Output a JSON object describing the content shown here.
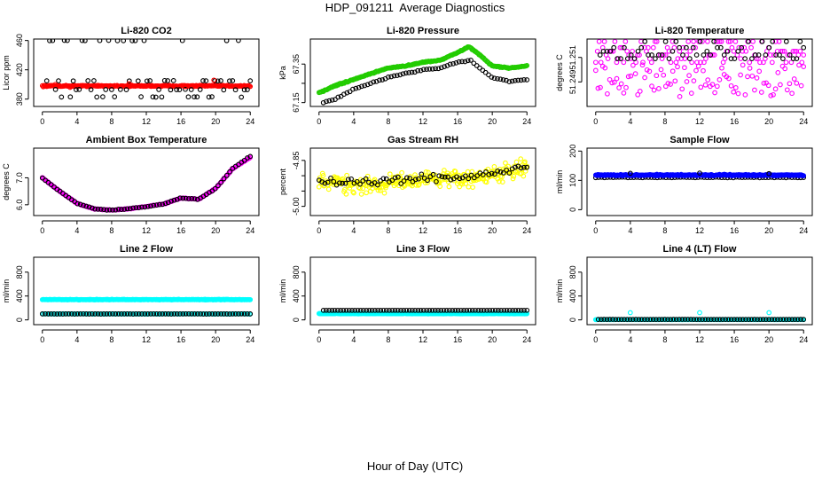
{
  "figure": {
    "title": "HDP_091211  Average Diagnostics",
    "xlabel": "Hour of Day (UTC)"
  },
  "colors": {
    "black": "#000000",
    "red": "#ff0000",
    "green": "#22cc00",
    "magenta": "#ff00ff",
    "yellow": "#ffff00",
    "blue": "#0000ff",
    "cyan": "#00ffff"
  },
  "chart_data": [
    {
      "id": "co2",
      "type": "scatter",
      "title": "Li-820 CO2",
      "ylabel": "Licor ppm",
      "ylim": [
        370,
        462
      ],
      "yticks": [
        380,
        420,
        460
      ],
      "yticklabels": [
        "380",
        "420",
        "460"
      ],
      "xlim": [
        -1,
        25
      ],
      "xticks": [
        0,
        4,
        8,
        12,
        16,
        20,
        24
      ],
      "series": [
        {
          "name": "instantaneous",
          "color": "red",
          "x_range": [
            0,
            24
          ],
          "n": 240,
          "y": [
            398,
            398
          ],
          "noise": 1.2
        },
        {
          "name": "black",
          "color": "black",
          "x_range": [
            0.5,
            24
          ],
          "n": 70,
          "levels": [
            383,
            393,
            405,
            460
          ],
          "noise": 0.6
        },
        {
          "name": "red-outliers",
          "color": "red",
          "x": [
            1.5,
            3.2,
            10,
            16.5,
            19.8
          ],
          "y": [
            400,
            396,
            401,
            397,
            406
          ]
        }
      ]
    },
    {
      "id": "pressure",
      "type": "scatter",
      "title": "Li-820 Pressure",
      "ylabel": "kPa",
      "ylim": [
        67.13,
        67.48
      ],
      "yticks": [
        67.15,
        67.25,
        67.35
      ],
      "yticklabels": [
        "67.15",
        "",
        "67.35"
      ],
      "xlim": [
        -1,
        25
      ],
      "xticks": [
        0,
        4,
        8,
        12,
        16,
        20,
        24
      ],
      "series": [
        {
          "name": "green",
          "color": "green",
          "n": 240,
          "noise": 0.004,
          "points": [
            [
              0,
              67.2
            ],
            [
              2,
              67.24
            ],
            [
              4,
              67.27
            ],
            [
              6,
              67.3
            ],
            [
              8,
              67.33
            ],
            [
              10,
              67.34
            ],
            [
              12,
              67.36
            ],
            [
              14,
              67.37
            ],
            [
              16,
              67.41
            ],
            [
              17.3,
              67.44
            ],
            [
              18.5,
              67.4
            ],
            [
              20,
              67.34
            ],
            [
              22,
              67.33
            ],
            [
              24,
              67.34
            ]
          ]
        },
        {
          "name": "black",
          "color": "black",
          "n": 70,
          "noise": 0.004,
          "points": [
            [
              0.5,
              67.15
            ],
            [
              2,
              67.17
            ],
            [
              4,
              67.22
            ],
            [
              6,
              67.25
            ],
            [
              8,
              67.28
            ],
            [
              10,
              67.3
            ],
            [
              12,
              67.32
            ],
            [
              14,
              67.33
            ],
            [
              16,
              67.36
            ],
            [
              17.5,
              67.37
            ],
            [
              18.5,
              67.33
            ],
            [
              20,
              67.28
            ],
            [
              22,
              67.26
            ],
            [
              24,
              67.27
            ]
          ]
        }
      ]
    },
    {
      "id": "temperature",
      "type": "scatter",
      "title": "Li-820 Temperature",
      "ylabel": "degrees C",
      "ylim": [
        51.247,
        51.2525
      ],
      "yticks": [
        51.249,
        51.251
      ],
      "yticklabels": [
        "51.249",
        "51.251"
      ],
      "xlim": [
        -1,
        25
      ],
      "xticks": [
        0,
        4,
        8,
        12,
        16,
        20,
        24
      ],
      "series": [
        {
          "name": "magenta-levels",
          "color": "magenta",
          "x_range": [
            0,
            24
          ],
          "n": 120,
          "levels": [
            51.2518,
            51.2515,
            51.2512,
            51.2509,
            51.2506,
            51.2523
          ]
        },
        {
          "name": "magenta-scatter",
          "color": "magenta",
          "x_range": [
            0,
            24
          ],
          "n": 90,
          "y_range": [
            51.2478,
            51.2504
          ]
        },
        {
          "name": "black",
          "color": "black",
          "x_range": [
            0.5,
            24
          ],
          "n": 60,
          "levels": [
            51.2518,
            51.2515,
            51.2512,
            51.2509,
            51.2523
          ]
        }
      ]
    },
    {
      "id": "ambient",
      "type": "scatter",
      "title": "Ambient Box Temperature",
      "ylabel": "degrees C",
      "ylim": [
        5.6,
        8.1
      ],
      "yticks": [
        6.0,
        7.0
      ],
      "yticklabels": [
        "6.0",
        "7.0"
      ],
      "xlim": [
        -1,
        25
      ],
      "xticks": [
        0,
        4,
        8,
        12,
        16,
        20,
        24
      ],
      "series": [
        {
          "name": "magenta",
          "color": "magenta",
          "n": 240,
          "noise": 0.02,
          "points": [
            [
              0,
              7.0
            ],
            [
              2,
              6.5
            ],
            [
              4,
              6.05
            ],
            [
              6,
              5.85
            ],
            [
              8,
              5.8
            ],
            [
              10,
              5.85
            ],
            [
              12,
              5.93
            ],
            [
              14,
              6.03
            ],
            [
              16,
              6.25
            ],
            [
              18,
              6.2
            ],
            [
              20,
              6.6
            ],
            [
              22,
              7.35
            ],
            [
              24,
              7.75
            ]
          ]
        },
        {
          "name": "black",
          "color": "black",
          "n": 72,
          "noise": 0.02,
          "points": [
            [
              0,
              7.0
            ],
            [
              2,
              6.5
            ],
            [
              4,
              6.05
            ],
            [
              6,
              5.85
            ],
            [
              8,
              5.8
            ],
            [
              10,
              5.85
            ],
            [
              12,
              5.93
            ],
            [
              14,
              6.03
            ],
            [
              16,
              6.25
            ],
            [
              18,
              6.2
            ],
            [
              20,
              6.6
            ],
            [
              22,
              7.35
            ],
            [
              24,
              7.8
            ]
          ]
        }
      ]
    },
    {
      "id": "rh",
      "type": "scatter",
      "title": "Gas Stream RH",
      "ylabel": "percent",
      "ylim": [
        -5.03,
        -4.81
      ],
      "yticks": [
        -5.0,
        -4.95,
        -4.9,
        -4.85
      ],
      "yticklabels": [
        "-5.00",
        "",
        "",
        "-4.85"
      ],
      "xlim": [
        -1,
        25
      ],
      "xticks": [
        0,
        4,
        8,
        12,
        16,
        20,
        24
      ],
      "series": [
        {
          "name": "yellow",
          "color": "yellow",
          "n": 300,
          "noise": 0.04,
          "points": [
            [
              0,
              -4.92
            ],
            [
              6,
              -4.93
            ],
            [
              12,
              -4.91
            ],
            [
              18,
              -4.91
            ],
            [
              24,
              -4.87
            ]
          ]
        },
        {
          "name": "black",
          "color": "black",
          "n": 72,
          "noise": 0.018,
          "points": [
            [
              0,
              -4.92
            ],
            [
              6,
              -4.92
            ],
            [
              12,
              -4.91
            ],
            [
              18,
              -4.9
            ],
            [
              24,
              -4.87
            ]
          ]
        }
      ]
    },
    {
      "id": "sample",
      "type": "scatter",
      "title": "Sample Flow",
      "ylabel": "ml/min",
      "ylim": [
        -20,
        210
      ],
      "yticks": [
        0,
        100,
        200
      ],
      "yticklabels": [
        "0",
        "100",
        "200"
      ],
      "xlim": [
        -1,
        25
      ],
      "xticks": [
        0,
        4,
        8,
        12,
        16,
        20,
        24
      ],
      "series": [
        {
          "name": "black",
          "color": "black",
          "x_range": [
            0,
            24
          ],
          "n": 72,
          "y": [
            110,
            110
          ],
          "noise": 2
        },
        {
          "name": "blue",
          "color": "blue",
          "x_range": [
            0,
            24
          ],
          "n": 300,
          "y": [
            118,
            118
          ],
          "noise": 3
        },
        {
          "name": "black-outliers",
          "color": "black",
          "x": [
            4,
            12,
            20
          ],
          "y": [
            124,
            125,
            123
          ]
        }
      ]
    },
    {
      "id": "line2",
      "type": "scatter",
      "title": "Line 2 Flow",
      "ylabel": "ml/min",
      "ylim": [
        -80,
        1050
      ],
      "yticks": [
        0,
        400,
        800
      ],
      "yticklabels": [
        "0",
        "400",
        "800"
      ],
      "xlim": [
        -1,
        25
      ],
      "xticks": [
        0,
        4,
        8,
        12,
        16,
        20,
        24
      ],
      "series": [
        {
          "name": "cyan",
          "color": "cyan",
          "x_range": [
            0,
            24
          ],
          "n": 300,
          "y": [
            340,
            340
          ],
          "noise": 6
        },
        {
          "name": "cyan-low",
          "color": "cyan",
          "x_range": [
            0,
            24
          ],
          "n": 160,
          "y": [
            100,
            100
          ],
          "noise": 4
        },
        {
          "name": "black",
          "color": "black",
          "x_range": [
            0,
            24
          ],
          "n": 72,
          "y": [
            100,
            100
          ],
          "noise": 2
        }
      ]
    },
    {
      "id": "line3",
      "type": "scatter",
      "title": "Line 3 Flow",
      "ylabel": "ml/min",
      "ylim": [
        -80,
        1050
      ],
      "yticks": [
        0,
        400,
        800
      ],
      "yticklabels": [
        "0",
        "400",
        "800"
      ],
      "xlim": [
        -1,
        25
      ],
      "xticks": [
        0,
        4,
        8,
        12,
        16,
        20,
        24
      ],
      "series": [
        {
          "name": "cyan",
          "color": "cyan",
          "x_range": [
            0,
            24
          ],
          "n": 300,
          "y": [
            105,
            105
          ],
          "noise": 5
        },
        {
          "name": "black",
          "color": "black",
          "x_range": [
            0.5,
            24
          ],
          "n": 72,
          "y": [
            160,
            160
          ],
          "noise": 2
        }
      ]
    },
    {
      "id": "line4",
      "type": "scatter",
      "title": "Line 4 (LT) Flow",
      "ylabel": "ml/min",
      "ylim": [
        -80,
        1050
      ],
      "yticks": [
        0,
        400,
        800
      ],
      "yticklabels": [
        "0",
        "400",
        "800"
      ],
      "xlim": [
        -1,
        25
      ],
      "xticks": [
        0,
        4,
        8,
        12,
        16,
        20,
        24
      ],
      "series": [
        {
          "name": "cyan",
          "color": "cyan",
          "x_range": [
            0,
            24
          ],
          "n": 200,
          "y": [
            5,
            5
          ],
          "noise": 2
        },
        {
          "name": "black",
          "color": "black",
          "x_range": [
            0.3,
            24
          ],
          "n": 72,
          "y": [
            8,
            8
          ],
          "noise": 1
        },
        {
          "name": "cyan-spikes",
          "color": "cyan",
          "x": [
            4,
            12,
            20
          ],
          "y": [
            120,
            120,
            120
          ]
        }
      ]
    }
  ]
}
